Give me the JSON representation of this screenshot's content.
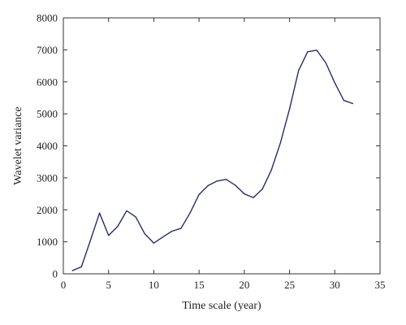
{
  "chart_data": {
    "type": "line",
    "xlabel": "Time scale (year)",
    "ylabel": "Wavelet variance",
    "xlim": [
      0,
      35
    ],
    "ylim": [
      0,
      8000
    ],
    "xticks": [
      0,
      5,
      10,
      15,
      20,
      25,
      30,
      35
    ],
    "yticks": [
      0,
      1000,
      2000,
      3000,
      4000,
      5000,
      6000,
      7000,
      8000
    ],
    "grid": false,
    "legend": "none",
    "line_color": "#2b2b6b",
    "series": [
      {
        "x": [
          1,
          2,
          3,
          4,
          5,
          6,
          7,
          8,
          9,
          10,
          11,
          12,
          13,
          14,
          15,
          16,
          17,
          18,
          19,
          20,
          21,
          22,
          23,
          24,
          25,
          26,
          27,
          28,
          29,
          30,
          31,
          32
        ],
        "values": [
          100,
          220,
          1050,
          1900,
          1200,
          1480,
          1970,
          1780,
          1250,
          960,
          1150,
          1330,
          1420,
          1900,
          2480,
          2760,
          2900,
          2950,
          2770,
          2500,
          2380,
          2650,
          3250,
          4100,
          5150,
          6350,
          6940,
          6990,
          6600,
          5970,
          5420,
          5320
        ]
      }
    ]
  }
}
